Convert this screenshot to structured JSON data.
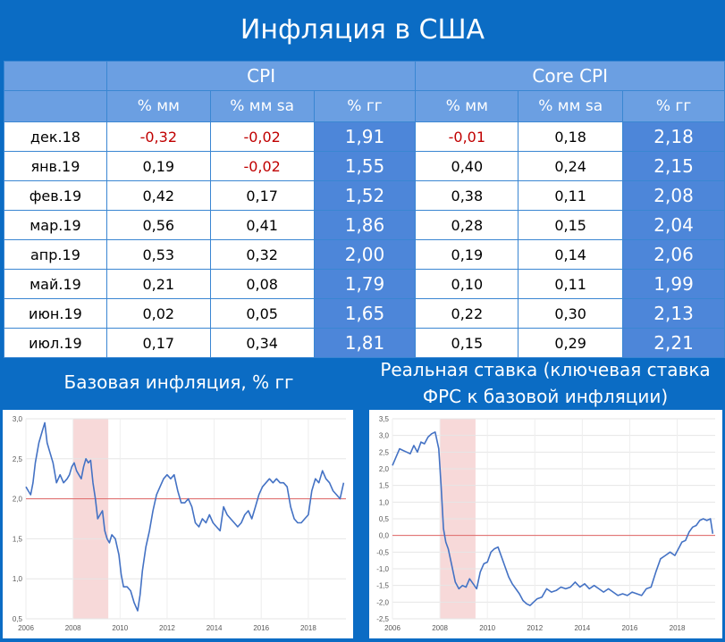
{
  "header": {
    "title": "Инфляция в США"
  },
  "table": {
    "groups": [
      "CPI",
      "Core CPI"
    ],
    "subheaders": [
      "% мм",
      "% мм sa",
      "% гг",
      "% мм",
      "% мм sa",
      "% гг"
    ],
    "rows": [
      {
        "month": "дек.18",
        "cpi_mm": "-0,32",
        "cpi_mm_sa": "-0,02",
        "cpi_yy": "1,91",
        "core_mm": "-0,01",
        "core_mm_sa": "0,18",
        "core_yy": "2,18"
      },
      {
        "month": "янв.19",
        "cpi_mm": "0,19",
        "cpi_mm_sa": "-0,02",
        "cpi_yy": "1,55",
        "core_mm": "0,40",
        "core_mm_sa": "0,24",
        "core_yy": "2,15"
      },
      {
        "month": "фев.19",
        "cpi_mm": "0,42",
        "cpi_mm_sa": "0,17",
        "cpi_yy": "1,52",
        "core_mm": "0,38",
        "core_mm_sa": "0,11",
        "core_yy": "2,08"
      },
      {
        "month": "мар.19",
        "cpi_mm": "0,56",
        "cpi_mm_sa": "0,41",
        "cpi_yy": "1,86",
        "core_mm": "0,28",
        "core_mm_sa": "0,15",
        "core_yy": "2,04"
      },
      {
        "month": "апр.19",
        "cpi_mm": "0,53",
        "cpi_mm_sa": "0,32",
        "cpi_yy": "2,00",
        "core_mm": "0,19",
        "core_mm_sa": "0,14",
        "core_yy": "2,06"
      },
      {
        "month": "май.19",
        "cpi_mm": "0,21",
        "cpi_mm_sa": "0,08",
        "cpi_yy": "1,79",
        "core_mm": "0,10",
        "core_mm_sa": "0,11",
        "core_yy": "1,99"
      },
      {
        "month": "июн.19",
        "cpi_mm": "0,02",
        "cpi_mm_sa": "0,05",
        "cpi_yy": "1,65",
        "core_mm": "0,22",
        "core_mm_sa": "0,30",
        "core_yy": "2,13"
      },
      {
        "month": "июл.19",
        "cpi_mm": "0,17",
        "cpi_mm_sa": "0,34",
        "cpi_yy": "1,81",
        "core_mm": "0,15",
        "core_mm_sa": "0,29",
        "core_yy": "2,21"
      }
    ]
  },
  "colors": {
    "background": "#0b6cc4",
    "header_cell": "#6b9fe2",
    "yy_cell": "#4d86d9",
    "negative": "#c00000",
    "line": "#4472c4",
    "ref_line": "#e06666",
    "recession": "#f7d9d9"
  },
  "chart_data": [
    {
      "type": "line",
      "title": "Базовая инфляция, % гг",
      "xlabel": "",
      "ylabel": "",
      "xlim": [
        2006.0,
        2019.6
      ],
      "ylim": [
        0.5,
        3.0
      ],
      "xticks": [
        "2006",
        "2008",
        "2010",
        "2012",
        "2014",
        "2016",
        "2018"
      ],
      "yticks": [
        "3,0",
        "2,5",
        "2,0",
        "1,5",
        "1,0",
        "0,5"
      ],
      "reference_line": 2.0,
      "shaded_region": [
        2008.0,
        2009.5
      ],
      "grid": true,
      "series": [
        {
          "x": [
            2006.0,
            2006.1,
            2006.2,
            2006.3,
            2006.4,
            2006.55,
            2006.7,
            2006.8,
            2006.9,
            2007.0,
            2007.15,
            2007.3,
            2007.45,
            2007.6,
            2007.75,
            2007.85,
            2007.95,
            2008.05,
            2008.15,
            2008.25,
            2008.35,
            2008.45,
            2008.55,
            2008.65,
            2008.75,
            2008.85,
            2008.95,
            2009.05,
            2009.15,
            2009.25,
            2009.35,
            2009.45,
            2009.55,
            2009.65,
            2009.8,
            2009.95,
            2010.05,
            2010.15,
            2010.3,
            2010.45,
            2010.6,
            2010.75,
            2010.85,
            2010.95,
            2011.1,
            2011.25,
            2011.4,
            2011.55,
            2011.7,
            2011.85,
            2012.0,
            2012.15,
            2012.3,
            2012.45,
            2012.6,
            2012.75,
            2012.9,
            2013.05,
            2013.2,
            2013.35,
            2013.5,
            2013.65,
            2013.8,
            2013.95,
            2014.1,
            2014.25,
            2014.4,
            2014.55,
            2014.7,
            2014.85,
            2015.0,
            2015.15,
            2015.3,
            2015.45,
            2015.6,
            2015.75,
            2015.9,
            2016.05,
            2016.2,
            2016.35,
            2016.5,
            2016.65,
            2016.8,
            2016.95,
            2017.1,
            2017.25,
            2017.4,
            2017.55,
            2017.7,
            2017.85,
            2018.0,
            2018.15,
            2018.3,
            2018.45,
            2018.6,
            2018.75,
            2018.9,
            2019.05,
            2019.2,
            2019.35,
            2019.5
          ],
          "y": [
            2.15,
            2.1,
            2.05,
            2.2,
            2.45,
            2.7,
            2.85,
            2.95,
            2.7,
            2.6,
            2.45,
            2.2,
            2.3,
            2.2,
            2.25,
            2.3,
            2.4,
            2.45,
            2.35,
            2.3,
            2.25,
            2.4,
            2.5,
            2.45,
            2.48,
            2.2,
            2.0,
            1.75,
            1.8,
            1.85,
            1.6,
            1.5,
            1.45,
            1.55,
            1.5,
            1.3,
            1.05,
            0.9,
            0.9,
            0.85,
            0.7,
            0.6,
            0.8,
            1.1,
            1.4,
            1.6,
            1.85,
            2.05,
            2.15,
            2.25,
            2.3,
            2.25,
            2.3,
            2.1,
            1.95,
            1.95,
            2.0,
            1.9,
            1.7,
            1.65,
            1.75,
            1.7,
            1.8,
            1.7,
            1.65,
            1.6,
            1.9,
            1.8,
            1.75,
            1.7,
            1.65,
            1.7,
            1.8,
            1.85,
            1.75,
            1.9,
            2.05,
            2.15,
            2.2,
            2.25,
            2.2,
            2.25,
            2.2,
            2.2,
            2.15,
            1.9,
            1.75,
            1.7,
            1.7,
            1.75,
            1.8,
            2.1,
            2.25,
            2.2,
            2.35,
            2.25,
            2.2,
            2.1,
            2.05,
            2.0,
            2.2
          ]
        }
      ]
    },
    {
      "type": "line",
      "title": "Реальная ставка (ключевая ставка ФРС к базовой инфляции)",
      "xlabel": "",
      "ylabel": "",
      "xlim": [
        2006.0,
        2019.6
      ],
      "ylim": [
        -2.5,
        3.5
      ],
      "xticks": [
        "2006",
        "2008",
        "2010",
        "2012",
        "2014",
        "2016",
        "2018"
      ],
      "yticks": [
        "3,5",
        "3,0",
        "2,5",
        "2,0",
        "1,5",
        "1,0",
        "0,5",
        "0,0",
        "-0,5",
        "-1,0",
        "-1,5",
        "-2,0",
        "-2,5"
      ],
      "reference_line": 0.0,
      "shaded_region": [
        2008.0,
        2009.5
      ],
      "grid": true,
      "series": [
        {
          "x": [
            2006.0,
            2006.15,
            2006.3,
            2006.45,
            2006.6,
            2006.75,
            2006.9,
            2007.05,
            2007.2,
            2007.35,
            2007.5,
            2007.65,
            2007.8,
            2007.95,
            2008.05,
            2008.15,
            2008.25,
            2008.35,
            2008.5,
            2008.65,
            2008.8,
            2008.95,
            2009.1,
            2009.25,
            2009.4,
            2009.55,
            2009.7,
            2009.85,
            2010.0,
            2010.15,
            2010.3,
            2010.45,
            2010.6,
            2010.75,
            2010.9,
            2011.05,
            2011.2,
            2011.35,
            2011.5,
            2011.65,
            2011.8,
            2011.95,
            2012.1,
            2012.3,
            2012.5,
            2012.7,
            2012.9,
            2013.1,
            2013.3,
            2013.5,
            2013.7,
            2013.9,
            2014.1,
            2014.3,
            2014.5,
            2014.7,
            2014.9,
            2015.1,
            2015.3,
            2015.5,
            2015.7,
            2015.9,
            2016.1,
            2016.3,
            2016.5,
            2016.7,
            2016.9,
            2017.1,
            2017.3,
            2017.5,
            2017.7,
            2017.9,
            2018.05,
            2018.2,
            2018.35,
            2018.5,
            2018.65,
            2018.8,
            2018.95,
            2019.1,
            2019.25,
            2019.4,
            2019.5
          ],
          "y": [
            2.1,
            2.35,
            2.6,
            2.55,
            2.5,
            2.45,
            2.7,
            2.5,
            2.8,
            2.75,
            2.95,
            3.05,
            3.1,
            2.6,
            1.5,
            0.2,
            -0.2,
            -0.4,
            -0.9,
            -1.4,
            -1.6,
            -1.5,
            -1.55,
            -1.3,
            -1.45,
            -1.6,
            -1.1,
            -0.85,
            -0.8,
            -0.5,
            -0.4,
            -0.35,
            -0.65,
            -0.95,
            -1.25,
            -1.45,
            -1.6,
            -1.75,
            -1.95,
            -2.05,
            -2.1,
            -2.0,
            -1.9,
            -1.85,
            -1.6,
            -1.7,
            -1.65,
            -1.55,
            -1.6,
            -1.55,
            -1.4,
            -1.55,
            -1.45,
            -1.6,
            -1.5,
            -1.6,
            -1.7,
            -1.6,
            -1.7,
            -1.8,
            -1.75,
            -1.8,
            -1.7,
            -1.75,
            -1.8,
            -1.6,
            -1.55,
            -1.1,
            -0.7,
            -0.6,
            -0.5,
            -0.6,
            -0.4,
            -0.2,
            -0.15,
            0.1,
            0.25,
            0.3,
            0.45,
            0.5,
            0.45,
            0.5,
            0.05
          ]
        }
      ]
    }
  ]
}
